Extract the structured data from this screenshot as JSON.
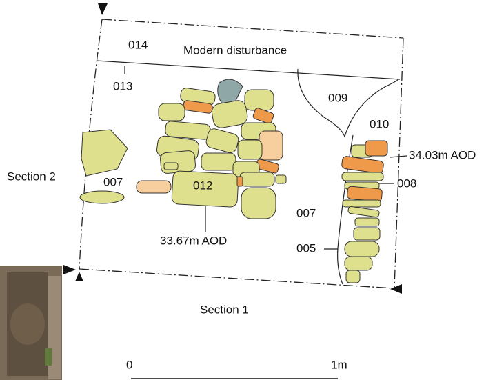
{
  "plan": {
    "disturbance_label": "Modern disturbance",
    "contexts": [
      "014",
      "013",
      "009",
      "010",
      "008",
      "007",
      "012",
      "007",
      "005"
    ],
    "levels": [
      "34.03m AOD",
      "33.67m AOD"
    ],
    "sections": [
      "Section 2",
      "Section 1"
    ]
  },
  "scale": {
    "start": "0",
    "end": "1m"
  }
}
